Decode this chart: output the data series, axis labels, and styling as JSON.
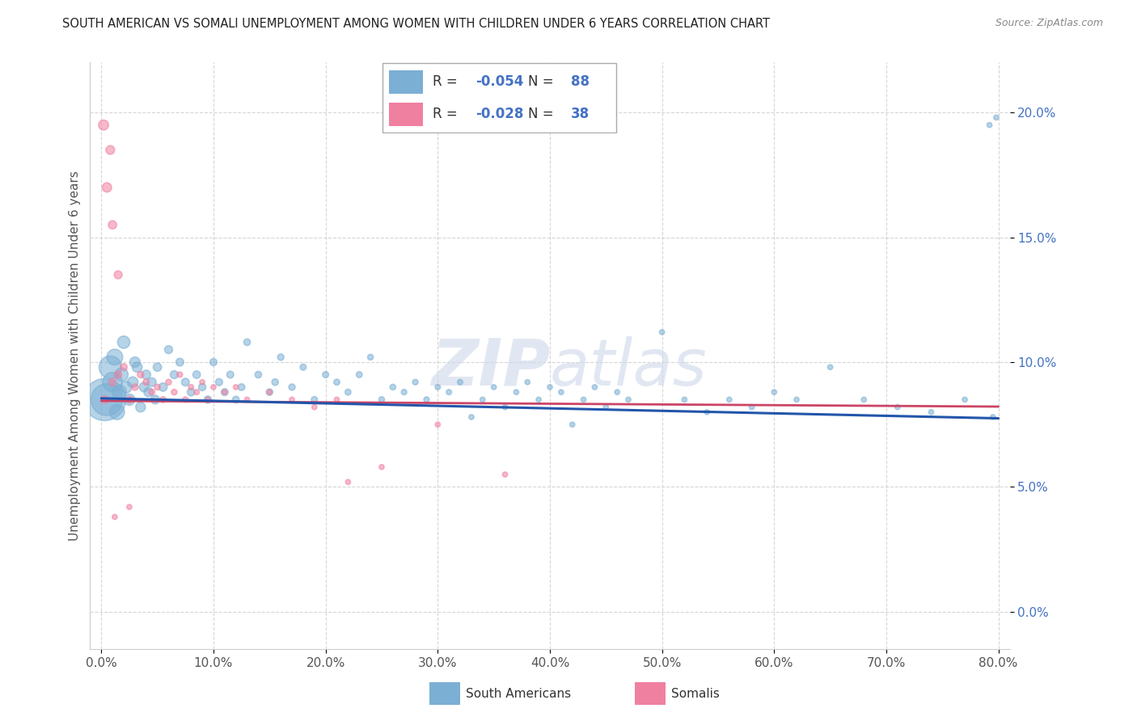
{
  "title": "SOUTH AMERICAN VS SOMALI UNEMPLOYMENT AMONG WOMEN WITH CHILDREN UNDER 6 YEARS CORRELATION CHART",
  "source": "Source: ZipAtlas.com",
  "ylabel": "Unemployment Among Women with Children Under 6 years",
  "xlim": [
    -1,
    81
  ],
  "ylim": [
    -1.5,
    22
  ],
  "xticks": [
    0,
    10,
    20,
    30,
    40,
    50,
    60,
    70,
    80
  ],
  "yticks": [
    0,
    5,
    10,
    15,
    20
  ],
  "ytick_labels": [
    "0.0%",
    "5.0%",
    "10.0%",
    "15.0%",
    "20.0%"
  ],
  "xtick_labels": [
    "0.0%",
    "10.0%",
    "20.0%",
    "30.0%",
    "40.0%",
    "50.0%",
    "60.0%",
    "70.0%",
    "80.0%"
  ],
  "south_american_color": "#7bafd4",
  "somali_color": "#f080a0",
  "south_american_line_color": "#2255aa",
  "somali_line_color": "#cc4466",
  "legend_R_south": "-0.054",
  "legend_N_south": "88",
  "legend_R_somali": "-0.028",
  "legend_N_somali": "38",
  "watermark_text": "ZIP",
  "watermark_text2": "atlas",
  "sa_line_start_y": 8.55,
  "sa_line_end_y": 7.75,
  "so_line_start_y": 8.45,
  "so_line_end_y": 8.22,
  "south_american_data": [
    [
      0.3,
      8.5,
      1400
    ],
    [
      0.5,
      8.5,
      800
    ],
    [
      0.8,
      9.8,
      400
    ],
    [
      1.0,
      9.2,
      300
    ],
    [
      1.2,
      10.2,
      200
    ],
    [
      1.4,
      8.0,
      180
    ],
    [
      1.6,
      8.8,
      160
    ],
    [
      1.8,
      9.5,
      140
    ],
    [
      2.0,
      10.8,
      120
    ],
    [
      2.2,
      9.0,
      110
    ],
    [
      2.5,
      8.5,
      100
    ],
    [
      2.8,
      9.2,
      90
    ],
    [
      3.0,
      10.0,
      85
    ],
    [
      3.2,
      9.8,
      80
    ],
    [
      3.5,
      8.2,
      75
    ],
    [
      3.8,
      9.0,
      70
    ],
    [
      4.0,
      9.5,
      65
    ],
    [
      4.2,
      8.8,
      65
    ],
    [
      4.5,
      9.2,
      60
    ],
    [
      4.8,
      8.5,
      60
    ],
    [
      5.0,
      9.8,
      55
    ],
    [
      5.5,
      9.0,
      55
    ],
    [
      6.0,
      10.5,
      50
    ],
    [
      6.5,
      9.5,
      50
    ],
    [
      7.0,
      10.0,
      48
    ],
    [
      7.5,
      9.2,
      48
    ],
    [
      8.0,
      8.8,
      45
    ],
    [
      8.5,
      9.5,
      45
    ],
    [
      9.0,
      9.0,
      42
    ],
    [
      9.5,
      8.5,
      42
    ],
    [
      10.0,
      10.0,
      40
    ],
    [
      10.5,
      9.2,
      40
    ],
    [
      11.0,
      8.8,
      38
    ],
    [
      11.5,
      9.5,
      38
    ],
    [
      12.0,
      8.5,
      36
    ],
    [
      12.5,
      9.0,
      36
    ],
    [
      13.0,
      10.8,
      35
    ],
    [
      14.0,
      9.5,
      35
    ],
    [
      15.0,
      8.8,
      34
    ],
    [
      15.5,
      9.2,
      34
    ],
    [
      16.0,
      10.2,
      32
    ],
    [
      17.0,
      9.0,
      32
    ],
    [
      18.0,
      9.8,
      30
    ],
    [
      19.0,
      8.5,
      30
    ],
    [
      20.0,
      9.5,
      30
    ],
    [
      21.0,
      9.2,
      28
    ],
    [
      22.0,
      8.8,
      28
    ],
    [
      23.0,
      9.5,
      28
    ],
    [
      24.0,
      10.2,
      26
    ],
    [
      25.0,
      8.5,
      26
    ],
    [
      26.0,
      9.0,
      26
    ],
    [
      27.0,
      8.8,
      24
    ],
    [
      28.0,
      9.2,
      24
    ],
    [
      29.0,
      8.5,
      24
    ],
    [
      30.0,
      9.0,
      22
    ],
    [
      31.0,
      8.8,
      22
    ],
    [
      32.0,
      9.2,
      22
    ],
    [
      33.0,
      7.8,
      20
    ],
    [
      34.0,
      8.5,
      20
    ],
    [
      35.0,
      9.0,
      20
    ],
    [
      36.0,
      8.2,
      20
    ],
    [
      37.0,
      8.8,
      20
    ],
    [
      38.0,
      9.2,
      20
    ],
    [
      39.0,
      8.5,
      20
    ],
    [
      40.0,
      9.0,
      20
    ],
    [
      41.0,
      8.8,
      20
    ],
    [
      42.0,
      7.5,
      20
    ],
    [
      43.0,
      8.5,
      20
    ],
    [
      44.0,
      9.0,
      20
    ],
    [
      45.0,
      8.2,
      20
    ],
    [
      46.0,
      8.8,
      20
    ],
    [
      47.0,
      8.5,
      20
    ],
    [
      50.0,
      11.2,
      20
    ],
    [
      52.0,
      8.5,
      20
    ],
    [
      54.0,
      8.0,
      20
    ],
    [
      56.0,
      8.5,
      20
    ],
    [
      58.0,
      8.2,
      20
    ],
    [
      60.0,
      8.8,
      20
    ],
    [
      62.0,
      8.5,
      20
    ],
    [
      65.0,
      9.8,
      20
    ],
    [
      68.0,
      8.5,
      20
    ],
    [
      71.0,
      8.2,
      20
    ],
    [
      74.0,
      8.0,
      20
    ],
    [
      77.0,
      8.5,
      20
    ],
    [
      79.5,
      7.8,
      20
    ],
    [
      79.8,
      19.8,
      20
    ],
    [
      79.2,
      19.5,
      20
    ]
  ],
  "somali_data": [
    [
      0.2,
      19.5,
      80
    ],
    [
      0.5,
      17.0,
      70
    ],
    [
      0.8,
      18.5,
      60
    ],
    [
      1.0,
      15.5,
      55
    ],
    [
      1.5,
      13.5,
      50
    ],
    [
      0.3,
      8.5,
      45
    ],
    [
      1.0,
      9.2,
      42
    ],
    [
      1.5,
      9.5,
      40
    ],
    [
      2.0,
      9.8,
      38
    ],
    [
      2.5,
      8.5,
      36
    ],
    [
      3.0,
      9.0,
      34
    ],
    [
      3.5,
      9.5,
      32
    ],
    [
      4.0,
      9.2,
      30
    ],
    [
      4.5,
      8.8,
      30
    ],
    [
      5.0,
      9.0,
      28
    ],
    [
      5.5,
      8.5,
      28
    ],
    [
      6.0,
      9.2,
      26
    ],
    [
      6.5,
      8.8,
      26
    ],
    [
      7.0,
      9.5,
      24
    ],
    [
      7.5,
      8.5,
      24
    ],
    [
      8.0,
      9.0,
      22
    ],
    [
      8.5,
      8.8,
      22
    ],
    [
      9.0,
      9.2,
      20
    ],
    [
      9.5,
      8.5,
      20
    ],
    [
      10.0,
      9.0,
      20
    ],
    [
      11.0,
      8.8,
      20
    ],
    [
      12.0,
      9.0,
      20
    ],
    [
      13.0,
      8.5,
      20
    ],
    [
      15.0,
      8.8,
      20
    ],
    [
      17.0,
      8.5,
      20
    ],
    [
      19.0,
      8.2,
      20
    ],
    [
      21.0,
      8.5,
      20
    ],
    [
      1.2,
      3.8,
      20
    ],
    [
      2.5,
      4.2,
      20
    ],
    [
      22.0,
      5.2,
      20
    ],
    [
      25.0,
      5.8,
      20
    ],
    [
      30.0,
      7.5,
      20
    ],
    [
      36.0,
      5.5,
      20
    ]
  ]
}
